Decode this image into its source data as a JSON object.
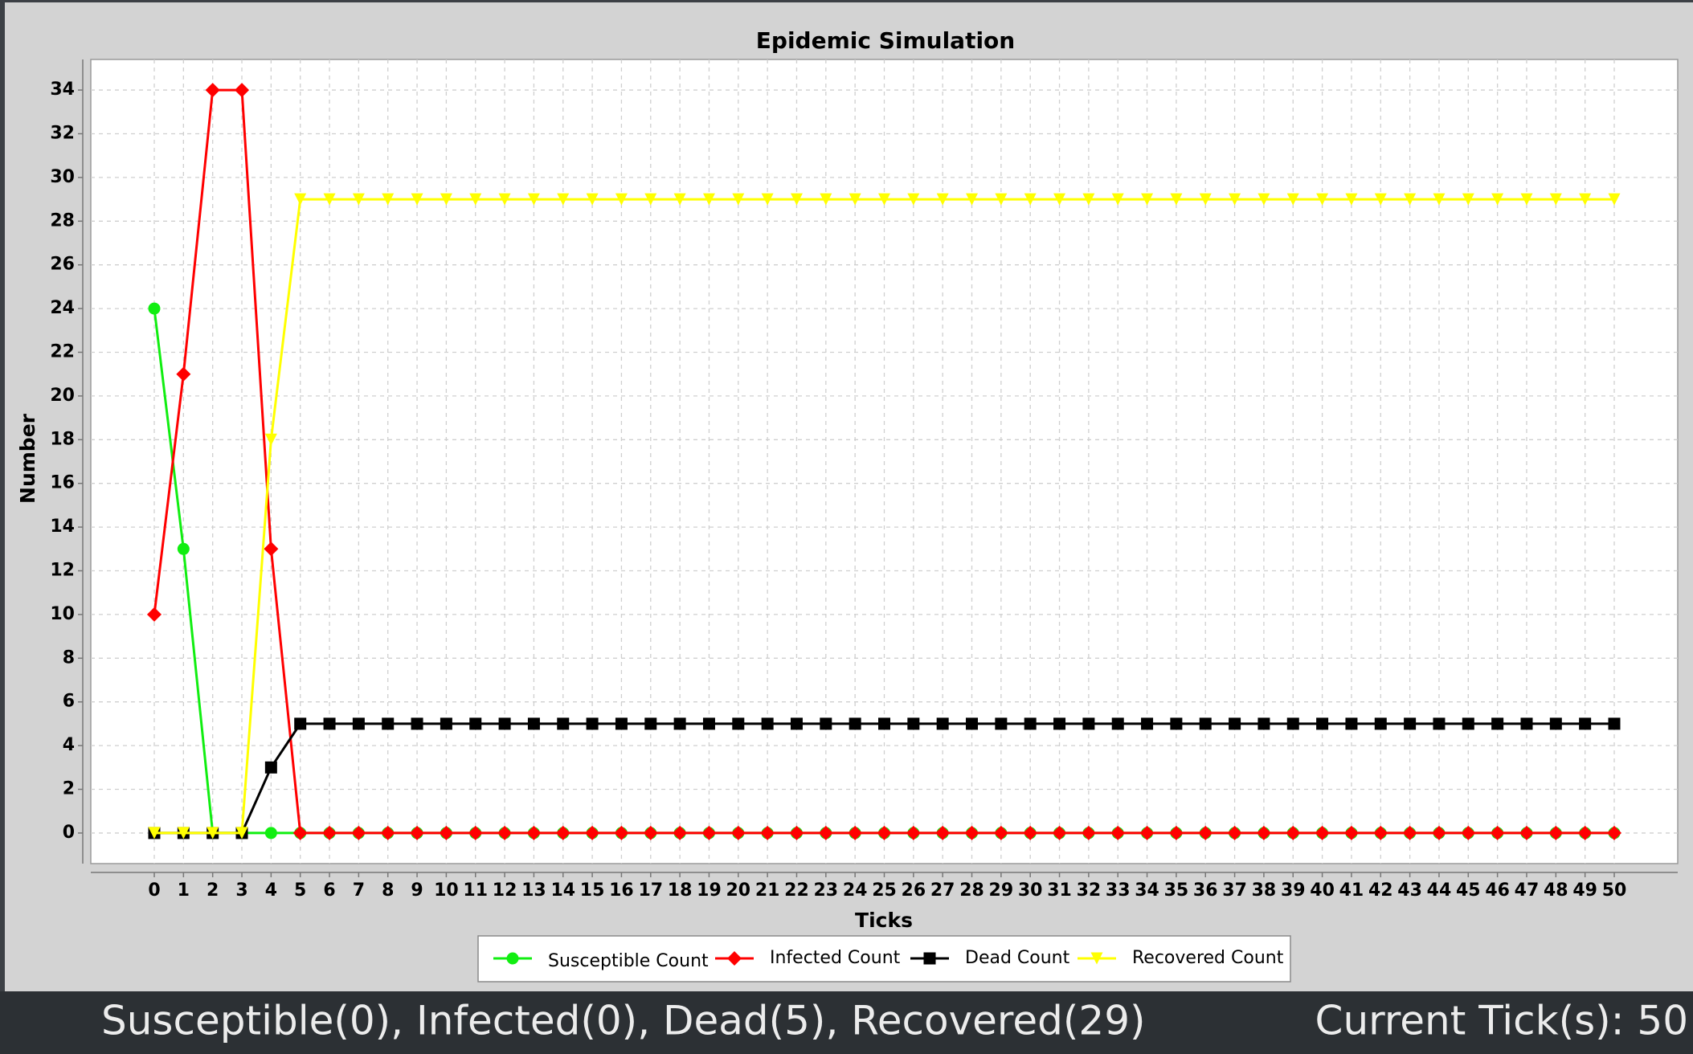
{
  "chart_data": {
    "type": "line",
    "title": "Epidemic Simulation",
    "x_label": "Ticks",
    "y_label": "Number",
    "categories": [
      "0",
      "1",
      "2",
      "3",
      "4",
      "5",
      "6",
      "7",
      "8",
      "9",
      "10",
      "11",
      "12",
      "13",
      "14",
      "15",
      "16",
      "17",
      "18",
      "19",
      "20",
      "21",
      "22",
      "23",
      "24",
      "25",
      "26",
      "27",
      "28",
      "29",
      "30",
      "31",
      "32",
      "33",
      "34",
      "35",
      "36",
      "37",
      "38",
      "39",
      "40",
      "41",
      "42",
      "43",
      "44",
      "45",
      "46",
      "47",
      "48",
      "49",
      "50"
    ],
    "series": [
      {
        "name": "Susceptible Count",
        "color": "#11ee11",
        "marker": "circle",
        "values": [
          24,
          13,
          0,
          0,
          0,
          0,
          0,
          0,
          0,
          0,
          0,
          0,
          0,
          0,
          0,
          0,
          0,
          0,
          0,
          0,
          0,
          0,
          0,
          0,
          0,
          0,
          0,
          0,
          0,
          0,
          0,
          0,
          0,
          0,
          0,
          0,
          0,
          0,
          0,
          0,
          0,
          0,
          0,
          0,
          0,
          0,
          0,
          0,
          0,
          0,
          0
        ]
      },
      {
        "name": "Infected Count",
        "color": "#ff0000",
        "marker": "diamond",
        "values": [
          10,
          21,
          34,
          34,
          13,
          0,
          0,
          0,
          0,
          0,
          0,
          0,
          0,
          0,
          0,
          0,
          0,
          0,
          0,
          0,
          0,
          0,
          0,
          0,
          0,
          0,
          0,
          0,
          0,
          0,
          0,
          0,
          0,
          0,
          0,
          0,
          0,
          0,
          0,
          0,
          0,
          0,
          0,
          0,
          0,
          0,
          0,
          0,
          0,
          0,
          0
        ]
      },
      {
        "name": "Dead Count",
        "color": "#000000",
        "marker": "square",
        "values": [
          0,
          0,
          0,
          0,
          3,
          5,
          5,
          5,
          5,
          5,
          5,
          5,
          5,
          5,
          5,
          5,
          5,
          5,
          5,
          5,
          5,
          5,
          5,
          5,
          5,
          5,
          5,
          5,
          5,
          5,
          5,
          5,
          5,
          5,
          5,
          5,
          5,
          5,
          5,
          5,
          5,
          5,
          5,
          5,
          5,
          5,
          5,
          5,
          5,
          5,
          5
        ]
      },
      {
        "name": "Recovered Count",
        "color": "#ffff00",
        "marker": "triangle-down",
        "values": [
          0,
          0,
          0,
          0,
          18,
          29,
          29,
          29,
          29,
          29,
          29,
          29,
          29,
          29,
          29,
          29,
          29,
          29,
          29,
          29,
          29,
          29,
          29,
          29,
          29,
          29,
          29,
          29,
          29,
          29,
          29,
          29,
          29,
          29,
          29,
          29,
          29,
          29,
          29,
          29,
          29,
          29,
          29,
          29,
          29,
          29,
          29,
          29,
          29,
          29,
          29
        ]
      }
    ],
    "ylim": [
      -1.4,
      35.4
    ],
    "yticks": [
      0,
      2,
      4,
      6,
      8,
      10,
      12,
      14,
      16,
      18,
      20,
      22,
      24,
      26,
      28,
      30,
      32,
      34
    ],
    "grid": true,
    "legend": "bottom"
  },
  "status": {
    "summary": "Susceptible(0), Infected(0), Dead(5), Recovered(29)",
    "tick": "Current Tick(s): 50"
  }
}
